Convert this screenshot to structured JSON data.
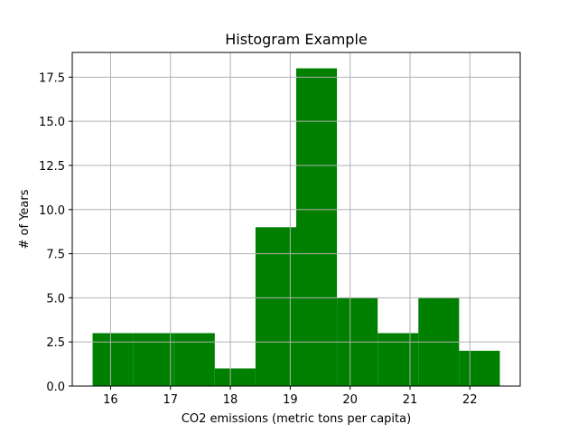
{
  "chart_data": {
    "type": "bar",
    "title": "Histogram Example",
    "xlabel": "CO2 emissions (metric tons per capita)",
    "ylabel": "# of Years",
    "bin_edges": [
      15.7,
      16.38,
      17.06,
      17.74,
      18.42,
      19.1,
      19.78,
      20.46,
      21.14,
      21.82,
      22.5
    ],
    "values": [
      3,
      3,
      3,
      1,
      9,
      18,
      5,
      3,
      5,
      2
    ],
    "xlim": [
      15.36,
      22.84
    ],
    "ylim": [
      0,
      18.9
    ],
    "xticks": [
      16,
      17,
      18,
      19,
      20,
      21,
      22
    ],
    "yticks": [
      "0.0",
      "2.5",
      "5.0",
      "7.5",
      "10.0",
      "12.5",
      "15.0",
      "17.5"
    ],
    "grid": true,
    "bar_color": "#008000",
    "grid_color": "#b0b0b0"
  }
}
